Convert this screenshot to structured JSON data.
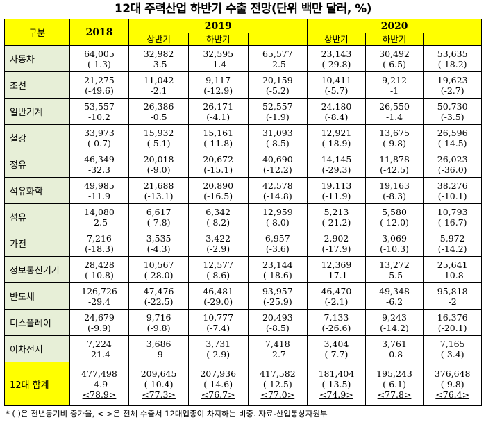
{
  "title": "12대 주력산업 하반기 수출 전망(단위 백만 달러, %)",
  "header": {
    "gubun": "구분",
    "y2018": "2018",
    "y2019": "2019",
    "y2020": "2020",
    "h1": "상반기",
    "h2": "하반기"
  },
  "rows": [
    {
      "label": "자동차",
      "cells": [
        [
          "64,005",
          "(-1.3)"
        ],
        [
          "32,982",
          "-3.5"
        ],
        [
          "32,595",
          "-1.4"
        ],
        [
          "65,577",
          "-2.5"
        ],
        [
          "23,143",
          "(-29.8)"
        ],
        [
          "30,492",
          "(-6.5)"
        ],
        [
          "53,635",
          "(-18.2)"
        ]
      ]
    },
    {
      "label": "조선",
      "cells": [
        [
          "21,275",
          "(-49.6)"
        ],
        [
          "11,042",
          "-2.1"
        ],
        [
          "9,117",
          "(-12.9)"
        ],
        [
          "20,159",
          "(-5.2)"
        ],
        [
          "10,411",
          "(-5.7)"
        ],
        [
          "9,212",
          "-1"
        ],
        [
          "19,623",
          "(-2.7)"
        ]
      ]
    },
    {
      "label": "일반기계",
      "cells": [
        [
          "53,557",
          "-10.2"
        ],
        [
          "26,386",
          "-0.5"
        ],
        [
          "26,171",
          "(-4.1)"
        ],
        [
          "52,557",
          "(-1.9)"
        ],
        [
          "24,180",
          "(-8.4)"
        ],
        [
          "26,550",
          "-1.4"
        ],
        [
          "50,730",
          "(-3.5)"
        ]
      ]
    },
    {
      "label": "철강",
      "cells": [
        [
          "33,973",
          "(-0.7)"
        ],
        [
          "15,932",
          "(-5.1)"
        ],
        [
          "15,161",
          "(-11.8)"
        ],
        [
          "31,093",
          "(-8.5)"
        ],
        [
          "12,921",
          "(-18.9)"
        ],
        [
          "13,675",
          "(-9.8)"
        ],
        [
          "26,596",
          "(-14.5)"
        ]
      ]
    },
    {
      "label": "정유",
      "cells": [
        [
          "46,349",
          "-32.3"
        ],
        [
          "20,018",
          "(-9.0)"
        ],
        [
          "20,672",
          "(-15.1)"
        ],
        [
          "40,690",
          "(-12.2)"
        ],
        [
          "14,145",
          "(-29.3)"
        ],
        [
          "11,878",
          "(-42.5)"
        ],
        [
          "26,023",
          "(-36.0)"
        ]
      ]
    },
    {
      "label": "석유화학",
      "cells": [
        [
          "49,985",
          "-11.9"
        ],
        [
          "21,688",
          "(-13.1)"
        ],
        [
          "20,890",
          "(-16.5)"
        ],
        [
          "42,578",
          "(-14.8)"
        ],
        [
          "19,113",
          "(-11.9)"
        ],
        [
          "19,163",
          "(-8.3)"
        ],
        [
          "38,276",
          "(-10.1)"
        ]
      ]
    },
    {
      "label": "섬유",
      "cells": [
        [
          "14,080",
          "-2.5"
        ],
        [
          "6,617",
          "(-7.8)"
        ],
        [
          "6,342",
          "(-8.2)"
        ],
        [
          "12,959",
          "(-8.0)"
        ],
        [
          "5,213",
          "(-21.2)"
        ],
        [
          "5,580",
          "(-12.0)"
        ],
        [
          "10,793",
          "(-16.7)"
        ]
      ]
    },
    {
      "label": "가전",
      "cells": [
        [
          "7,216",
          "(-18.3)"
        ],
        [
          "3,535",
          "(-4.3)"
        ],
        [
          "3,422",
          "(-2.9)"
        ],
        [
          "6,957",
          "(-3.6)"
        ],
        [
          "2,902",
          "(-17.9)"
        ],
        [
          "3,069",
          "(-10.3)"
        ],
        [
          "5,972",
          "(-14.2)"
        ]
      ]
    },
    {
      "label": "정보통신기기",
      "cells": [
        [
          "28,428",
          "(-10.8)"
        ],
        [
          "10,567",
          "(-28.0)"
        ],
        [
          "12,577",
          "(-8.6)"
        ],
        [
          "23,144",
          "(-18.6)"
        ],
        [
          "12,369",
          "-17.1"
        ],
        [
          "13,272",
          "-5.5"
        ],
        [
          "25,641",
          "-10.8"
        ]
      ]
    },
    {
      "label": "반도체",
      "cells": [
        [
          "126,726",
          "-29.4"
        ],
        [
          "47,476",
          "(-22.5)"
        ],
        [
          "46,481",
          "(-29.0)"
        ],
        [
          "93,957",
          "(-25.9)"
        ],
        [
          "46,470",
          "(-2.1)"
        ],
        [
          "49,348",
          "-6.2"
        ],
        [
          "95,818",
          "-2"
        ]
      ]
    },
    {
      "label": "디스플레이",
      "cells": [
        [
          "24,679",
          "(-9.9)"
        ],
        [
          "9,716",
          "(-9.8)"
        ],
        [
          "10,777",
          "(-7.4)"
        ],
        [
          "20,493",
          "(-8.5)"
        ],
        [
          "7,133",
          "(-26.6)"
        ],
        [
          "9,243",
          "(-14.2)"
        ],
        [
          "16,376",
          "(-20.1)"
        ]
      ]
    },
    {
      "label": "이차전지",
      "cells": [
        [
          "7,224",
          "-21.4"
        ],
        [
          "3,686",
          "-9"
        ],
        [
          "3,731",
          "(-2.9)"
        ],
        [
          "7,418",
          "-2.7"
        ],
        [
          "3,404",
          "(-7.7)"
        ],
        [
          "3,761",
          "-0.8"
        ],
        [
          "7,165",
          "(-3.4)"
        ]
      ]
    },
    {
      "label": "12대 합계",
      "cells": [
        [
          "477,498",
          "-4.9",
          "<78.9>"
        ],
        [
          "209,645",
          "(-10.4)",
          "<77.3>"
        ],
        [
          "207,936",
          "(-14.6)",
          "<76.7>"
        ],
        [
          "417,582",
          "(-12.5)",
          "<77.0>"
        ],
        [
          "181,404",
          "(-13.5)",
          "<74.9>"
        ],
        [
          "195,243",
          "(-6.1)",
          "<77.8>"
        ],
        [
          "376,648",
          "(-9.8)",
          "<76.4>"
        ]
      ]
    }
  ],
  "footnote": "* ( )은 전년동기비 증가율, < >은 전체 수출서 12대업종이 차지하는 비중. 자료-산업통상자원부"
}
